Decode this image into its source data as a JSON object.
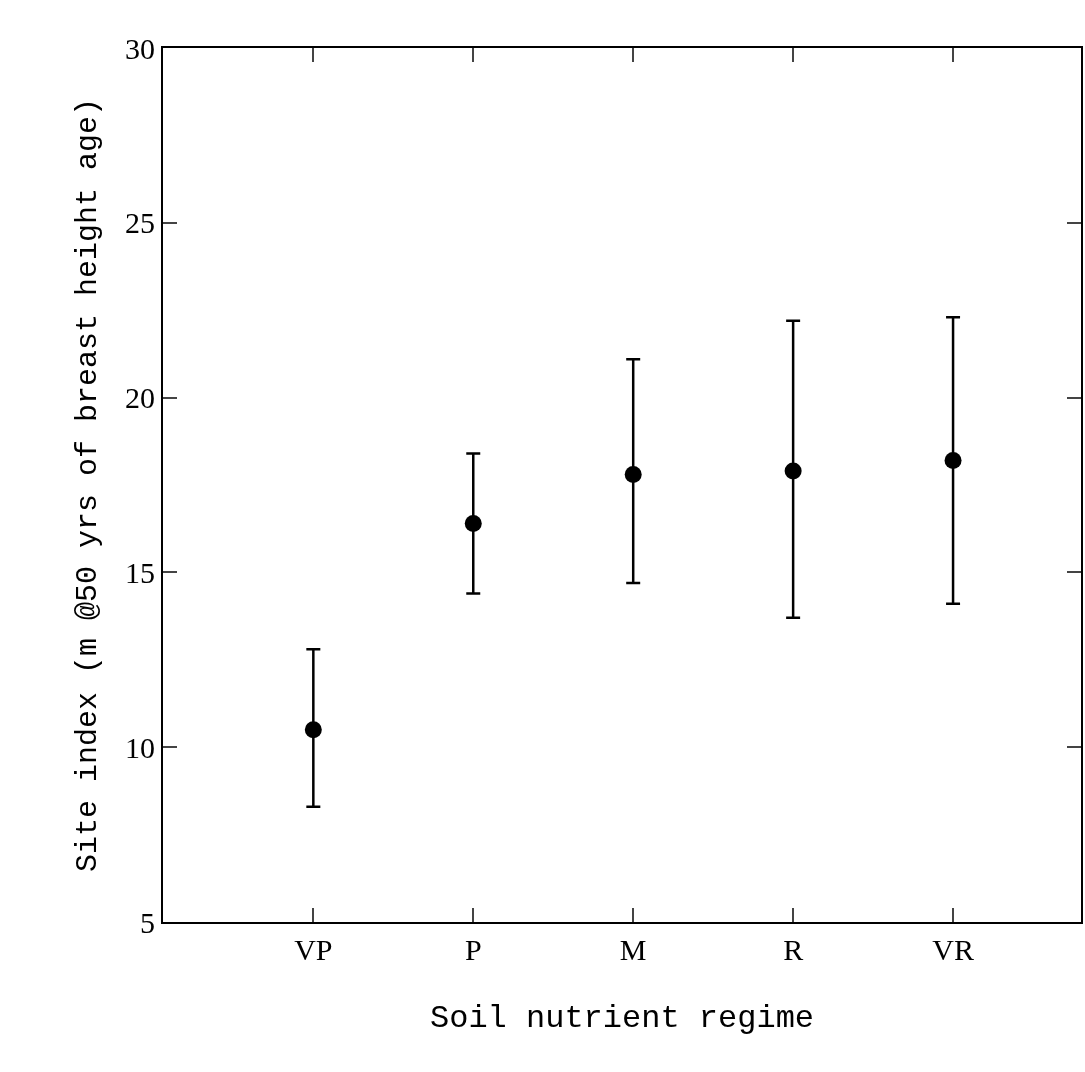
{
  "chart_data": {
    "type": "scatter",
    "xlabel": "Soil nutrient regime",
    "ylabel": "Site index (m @50 yrs of breast height age)",
    "categories": [
      "VP",
      "P",
      "M",
      "R",
      "VR"
    ],
    "series": [
      {
        "color": "#000000",
        "values": [
          10.5,
          16.4,
          17.8,
          17.9,
          18.2
        ],
        "errors": [
          [
            8.3,
            12.8
          ],
          [
            14.4,
            18.4
          ],
          [
            14.7,
            21.1
          ],
          [
            13.7,
            22.2
          ],
          [
            14.1,
            22.3
          ]
        ]
      }
    ],
    "marker": "circle",
    "ylim": [
      5,
      30
    ],
    "yticks": [
      5,
      10,
      15,
      20,
      25,
      30
    ]
  }
}
